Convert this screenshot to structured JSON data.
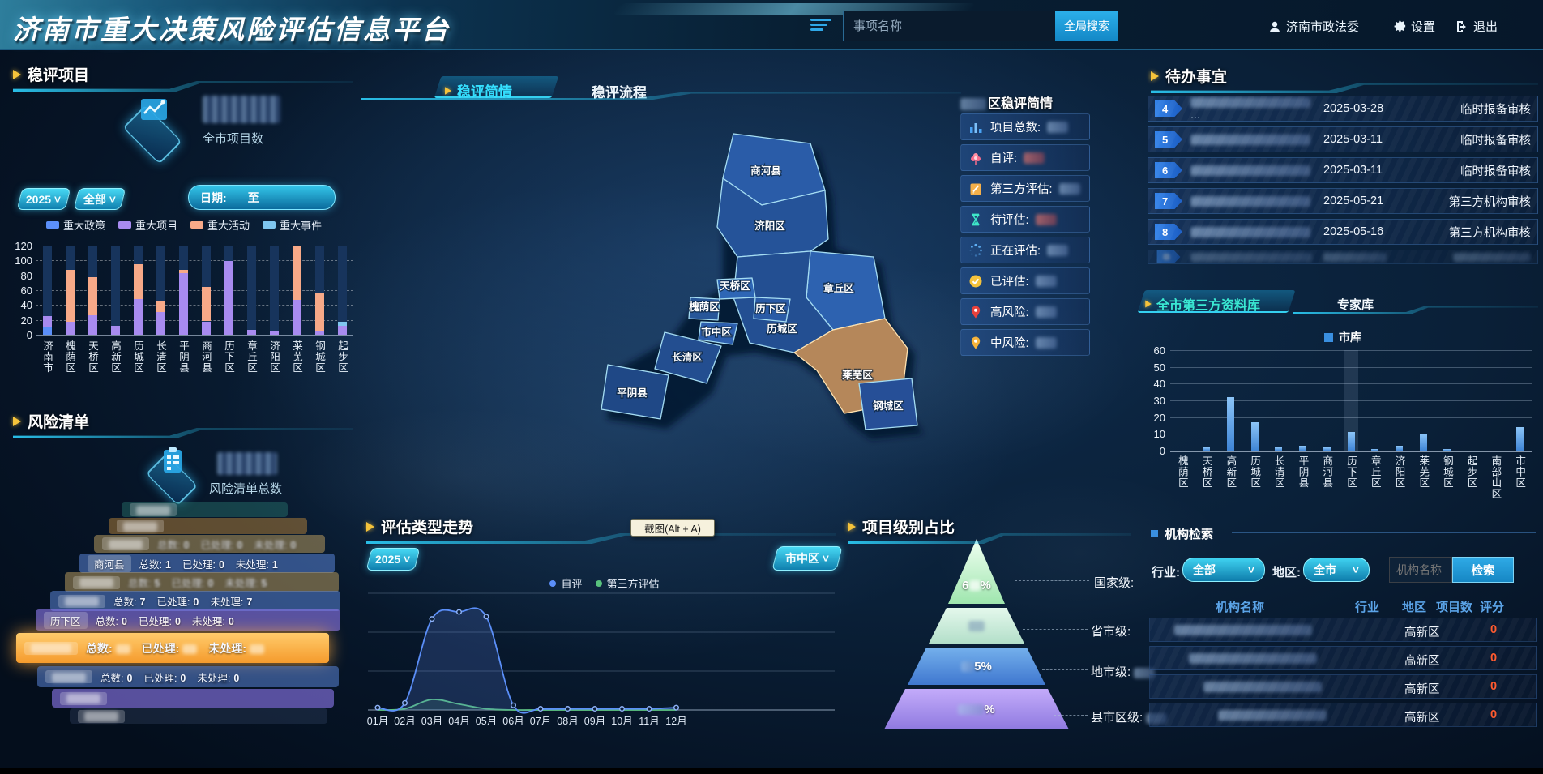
{
  "header": {
    "title": "济南市重大决策风险评估信息平台",
    "search_placeholder": "事项名称",
    "search_button": "全局搜索",
    "user_name": "济南市政法委",
    "settings": "设置",
    "logout": "退出"
  },
  "left": {
    "projects": {
      "title": "稳评项目",
      "total_label": "全市项目数",
      "year_filter": "2025",
      "scope_filter": "全部",
      "date_label": "日期:",
      "date_to": "至",
      "chart_data": {
        "type": "bar-stacked",
        "ylim": [
          0,
          120
        ],
        "ytick_step": 20,
        "grid": true,
        "legend_position": "top",
        "categories": [
          "济南市",
          "槐荫区",
          "天桥区",
          "高新区",
          "历城区",
          "长清区",
          "平阴县",
          "商河县",
          "历下区",
          "章丘区",
          "济阳区",
          "莱芜区",
          "钢城区",
          "起步区"
        ],
        "series": [
          {
            "name": "重大政策",
            "color": "#5b8ff9",
            "values": [
              10,
              0,
              0,
              0,
              0,
              0,
              0,
              0,
              0,
              0,
              0,
              0,
              0,
              0
            ]
          },
          {
            "name": "重大项目",
            "color": "#a88bf0",
            "values": [
              15,
              18,
              26,
              12,
              48,
              31,
              83,
              18,
              99,
              7,
              5,
              47,
              5,
              12
            ]
          },
          {
            "name": "重大活动",
            "color": "#f7a988",
            "values": [
              0,
              69,
              51,
              0,
              47,
              15,
              4,
              46,
              0,
              0,
              0,
              73,
              52,
              0
            ]
          },
          {
            "name": "重大事件",
            "color": "#7fc6ef",
            "values": [
              0,
              0,
              0,
              0,
              0,
              0,
              0,
              0,
              0,
              0,
              0,
              0,
              0,
              5
            ]
          }
        ]
      }
    },
    "risks": {
      "title": "风险清单",
      "total_label": "风险清单总数",
      "stat_labels": {
        "total": "总数:",
        "handled": "已处理:",
        "unhandled": "未处理:"
      },
      "rows": [
        {
          "name": "",
          "total": "",
          "handled": "",
          "unhandled": "",
          "style": "teal",
          "show_text": false
        },
        {
          "name": "",
          "total": "",
          "handled": "",
          "unhandled": "",
          "style": "orange",
          "show_text": false
        },
        {
          "name": "",
          "total": "0",
          "handled": "0",
          "unhandled": "0",
          "style": "tan",
          "show_text": true,
          "blur": true
        },
        {
          "name": "商河县",
          "total": "1",
          "handled": "0",
          "unhandled": "1",
          "style": "blue",
          "show_text": true
        },
        {
          "name": "",
          "total": "5",
          "handled": "0",
          "unhandled": "5",
          "style": "tan",
          "show_text": true,
          "blur": true
        },
        {
          "name": "",
          "total": "7",
          "handled": "0",
          "unhandled": "7",
          "style": "blue",
          "show_text": true
        },
        {
          "name": "历下区",
          "total": "0",
          "handled": "0",
          "unhandled": "0",
          "style": "purple",
          "show_text": true
        },
        {
          "name": "",
          "total": "",
          "handled": "",
          "unhandled": "",
          "style": "orange-front",
          "show_text": true,
          "redacted_values": true
        },
        {
          "name": "",
          "total": "0",
          "handled": "0",
          "unhandled": "0",
          "style": "blue",
          "show_text": true
        },
        {
          "name": "",
          "total": "",
          "handled": "",
          "unhandled": "",
          "style": "purple",
          "show_text": false
        },
        {
          "name": "",
          "total": "",
          "handled": "",
          "unhandled": "",
          "style": "dim",
          "show_text": false
        }
      ]
    }
  },
  "center": {
    "tabs": [
      {
        "label": "稳评简情",
        "active": true
      },
      {
        "label": "稳评流程",
        "active": false
      }
    ],
    "map": {
      "districts": [
        "商河县",
        "济阳区",
        "章丘区",
        "历城区",
        "天桥区",
        "历下区",
        "槐荫区",
        "市中区",
        "长清区",
        "平阴县",
        "莱芜区",
        "钢城区"
      ],
      "highlighted": "莱芜区"
    },
    "stats": {
      "title_visible": "区稳评简情",
      "items": [
        {
          "icon": "bar-chart-icon",
          "label": "项目总数:"
        },
        {
          "icon": "flower-icon",
          "label": "自评:"
        },
        {
          "icon": "pen-icon",
          "label": "第三方评估:"
        },
        {
          "icon": "hourglass-icon",
          "label": "待评估:"
        },
        {
          "icon": "spinner-icon",
          "label": "正在评估:"
        },
        {
          "icon": "check-icon",
          "label": "已评估:"
        },
        {
          "icon": "pin-red-icon",
          "label": "高风险:"
        },
        {
          "icon": "pin-yellow-icon",
          "label": "中风险:"
        }
      ]
    },
    "trend": {
      "title": "评估类型走势",
      "year_filter": "2025",
      "district_filter": "市中区",
      "chart_data": {
        "type": "line",
        "ylim": [
          0,
          100
        ],
        "grid": true,
        "x": [
          "01月",
          "02月",
          "03月",
          "04月",
          "05月",
          "06月",
          "07月",
          "08月",
          "09月",
          "10月",
          "11月",
          "12月"
        ],
        "series": [
          {
            "name": "自评",
            "color": "#5b8ff9",
            "values": [
              2,
              6,
              78,
              84,
              80,
              4,
              1,
              1,
              1,
              1,
              1,
              2
            ]
          },
          {
            "name": "第三方评估",
            "color": "#58c27d",
            "values": [
              0,
              1,
              9,
              5,
              1,
              0,
              0,
              0,
              0,
              0,
              0,
              0
            ]
          }
        ]
      }
    },
    "pyramid": {
      "title": "项目级别占比",
      "tiers": [
        {
          "label": "国家级:",
          "pct_prefix": "6",
          "pct_suffix": "%"
        },
        {
          "label": "省市级:",
          "pct_prefix": "",
          "pct_suffix": ""
        },
        {
          "label": "地市级:",
          "pct_prefix": "",
          "pct_suffix": "5%"
        },
        {
          "label": "县市区级:",
          "pct_prefix": "",
          "pct_suffix": "%"
        }
      ]
    },
    "tooltip": "截图(Alt + A)"
  },
  "right": {
    "todo": {
      "title": "待办事宜",
      "items": [
        {
          "num": "4",
          "date": "2025-03-28",
          "status": "临时报备审核"
        },
        {
          "num": "5",
          "date": "2025-03-11",
          "status": "临时报备审核"
        },
        {
          "num": "6",
          "date": "2025-03-11",
          "status": "临时报备审核"
        },
        {
          "num": "7",
          "date": "2025-05-21",
          "status": "第三方机构审核"
        },
        {
          "num": "8",
          "date": "2025-05-16",
          "status": "第三方机构审核"
        }
      ]
    },
    "library": {
      "tabs": [
        {
          "label": "全市第三方资料库",
          "active": true
        },
        {
          "label": "专家库",
          "active": false
        }
      ],
      "chart_data": {
        "type": "bar",
        "legend": "市库",
        "color": "#5aa2e8",
        "ylim": [
          0,
          60
        ],
        "ytick_step": 10,
        "grid": true,
        "categories": [
          "槐荫区",
          "天桥区",
          "高新区",
          "历城区",
          "长清区",
          "平阴县",
          "商河县",
          "历下区",
          "章丘区",
          "济阳区",
          "莱芜区",
          "钢城区",
          "起步区",
          "南部山区",
          "市中区"
        ],
        "values": [
          0,
          2,
          32,
          17,
          2,
          3,
          2,
          11,
          1,
          3,
          10,
          1,
          0,
          0,
          14
        ],
        "highlight_index": 7
      }
    },
    "org_search": {
      "title": "机构检索",
      "industry_label": "行业:",
      "industry_value": "全部",
      "region_label": "地区:",
      "region_value": "全市",
      "input_placeholder": "机构名称",
      "button": "检索",
      "headers": [
        "机构名称",
        "行业",
        "地区",
        "项目数",
        "评分"
      ],
      "rows": [
        {
          "name": "",
          "industry": "",
          "region": "高新区",
          "projects": "",
          "score": "0"
        },
        {
          "name": "",
          "industry": "",
          "region": "高新区",
          "projects": "",
          "score": "0"
        },
        {
          "name": "",
          "industry": "",
          "region": "高新区",
          "projects": "",
          "score": "0"
        },
        {
          "name": "",
          "industry": "",
          "region": "高新区",
          "projects": "",
          "score": "0"
        }
      ]
    }
  }
}
